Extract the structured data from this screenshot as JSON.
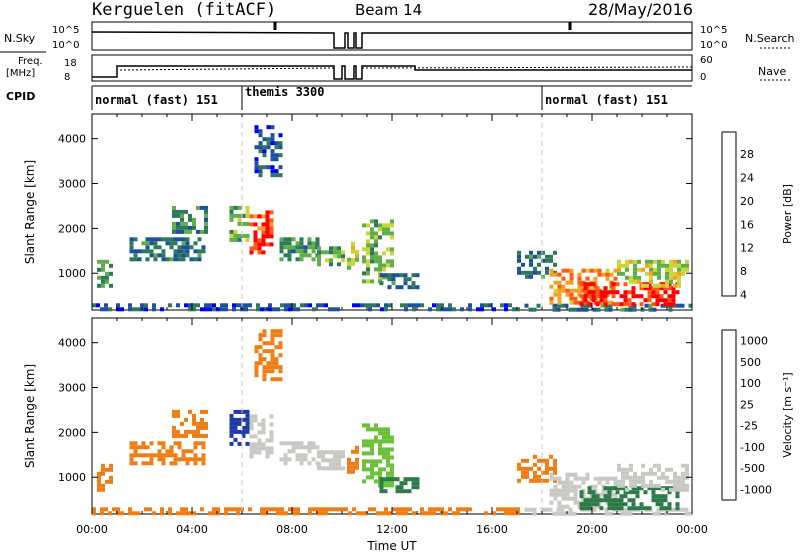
{
  "header": {
    "station": "Kerguelen (fitACF)",
    "beam": "Beam 14",
    "date": "28/May/2016"
  },
  "strips": {
    "nsky_label": "N.Sky",
    "nsearch_label": "N.Search",
    "noise_ticks": [
      "10^5",
      "10^0"
    ],
    "freq_label_1": "Freq.",
    "freq_label_2": "[MHz]",
    "freq_ticks": [
      "18",
      "8"
    ],
    "nave_label": "Nave",
    "nave_ticks": [
      "60",
      "0"
    ],
    "cpid_label": "CPID"
  },
  "cpid": [
    {
      "label": "normal (fast) 151",
      "start_h": 0
    },
    {
      "label": "themis 3300",
      "start_h": 6
    },
    {
      "label": "normal (fast) 151",
      "start_h": 18
    }
  ],
  "chart_data": [
    {
      "type": "heatmap",
      "name": "power",
      "ylabel": "Slant Range [km]",
      "xlabel": "Time UT",
      "ylim": [
        180,
        4550
      ],
      "xlim_hours": [
        0,
        24
      ],
      "x_ticks": [
        "00:00",
        "04:00",
        "08:00",
        "12:00",
        "16:00",
        "20:00",
        "00:00"
      ],
      "y_ticks": [
        1000,
        2000,
        3000,
        4000
      ],
      "colorbar_label": "Power [dB]",
      "colorbar_ticks": [
        "28",
        "24",
        "20",
        "16",
        "12",
        "8",
        "4"
      ],
      "colorbar_range": [
        0,
        30
      ],
      "regions": [
        {
          "t": [
            0.0,
            17.0
          ],
          "r": [
            200,
            330
          ],
          "v": 6
        },
        {
          "t": [
            17.3,
            24.0
          ],
          "r": [
            200,
            320
          ],
          "v": 8
        },
        {
          "t": [
            0.2,
            0.8
          ],
          "r": [
            700,
            1300
          ],
          "v": 12
        },
        {
          "t": [
            1.5,
            4.5
          ],
          "r": [
            1300,
            1800
          ],
          "v": 8
        },
        {
          "t": [
            3.2,
            4.5
          ],
          "r": [
            1900,
            2500
          ],
          "v": 10
        },
        {
          "t": [
            5.5,
            6.2
          ],
          "r": [
            1700,
            2500
          ],
          "v": 14
        },
        {
          "t": [
            6.3,
            7.2
          ],
          "r": [
            1500,
            2400
          ],
          "v": 26
        },
        {
          "t": [
            6.5,
            7.5
          ],
          "r": [
            3200,
            4300
          ],
          "v": 6
        },
        {
          "t": [
            7.5,
            9.0
          ],
          "r": [
            1300,
            1800
          ],
          "v": 10
        },
        {
          "t": [
            9.0,
            10.0
          ],
          "r": [
            1200,
            1600
          ],
          "v": 12
        },
        {
          "t": [
            10.2,
            10.6
          ],
          "r": [
            1100,
            1700
          ],
          "v": 18
        },
        {
          "t": [
            10.8,
            12.0
          ],
          "r": [
            800,
            2200
          ],
          "v": 14
        },
        {
          "t": [
            11.5,
            13.0
          ],
          "r": [
            700,
            1000
          ],
          "v": 8
        },
        {
          "t": [
            17.0,
            18.5
          ],
          "r": [
            900,
            1500
          ],
          "v": 8
        },
        {
          "t": [
            18.3,
            21.0
          ],
          "r": [
            300,
            1100
          ],
          "v": 22
        },
        {
          "t": [
            19.5,
            23.5
          ],
          "r": [
            300,
            800
          ],
          "v": 28
        },
        {
          "t": [
            21.0,
            23.8
          ],
          "r": [
            700,
            1300
          ],
          "v": 16
        }
      ]
    },
    {
      "type": "heatmap",
      "name": "velocity",
      "ylabel": "Slant Range [km]",
      "xlabel": "Time UT",
      "ylim": [
        180,
        4550
      ],
      "xlim_hours": [
        0,
        24
      ],
      "x_ticks": [
        "00:00",
        "04:00",
        "08:00",
        "12:00",
        "16:00",
        "20:00",
        "00:00"
      ],
      "y_ticks": [
        1000,
        2000,
        3000,
        4000
      ],
      "colorbar_label": "Velocity [m s⁻¹]",
      "colorbar_ticks": [
        "1000",
        "500",
        "100",
        "25",
        "-25",
        "-100",
        "-500",
        "-1000"
      ],
      "regions": [
        {
          "t": [
            0.0,
            17.0
          ],
          "r": [
            200,
            330
          ],
          "v": -100
        },
        {
          "t": [
            17.3,
            24.0
          ],
          "r": [
            200,
            320
          ],
          "v": 0
        },
        {
          "t": [
            0.2,
            0.8
          ],
          "r": [
            700,
            1300
          ],
          "v": -100
        },
        {
          "t": [
            1.5,
            4.5
          ],
          "r": [
            1300,
            1800
          ],
          "v": -100
        },
        {
          "t": [
            3.2,
            4.5
          ],
          "r": [
            1900,
            2500
          ],
          "v": -100
        },
        {
          "t": [
            5.5,
            6.2
          ],
          "r": [
            1700,
            2500
          ],
          "v": 500
        },
        {
          "t": [
            6.3,
            7.2
          ],
          "r": [
            1500,
            2400
          ],
          "v": 0
        },
        {
          "t": [
            6.5,
            7.5
          ],
          "r": [
            3200,
            4300
          ],
          "v": -250
        },
        {
          "t": [
            7.5,
            9.0
          ],
          "r": [
            1300,
            1800
          ],
          "v": 0
        },
        {
          "t": [
            9.0,
            10.0
          ],
          "r": [
            1200,
            1600
          ],
          "v": 0
        },
        {
          "t": [
            10.2,
            10.6
          ],
          "r": [
            1100,
            1700
          ],
          "v": -400
        },
        {
          "t": [
            10.8,
            12.0
          ],
          "r": [
            800,
            2200
          ],
          "v": 50
        },
        {
          "t": [
            11.5,
            13.0
          ],
          "r": [
            700,
            1000
          ],
          "v": 100
        },
        {
          "t": [
            17.0,
            18.5
          ],
          "r": [
            900,
            1500
          ],
          "v": -100
        },
        {
          "t": [
            18.3,
            21.0
          ],
          "r": [
            300,
            1100
          ],
          "v": 0
        },
        {
          "t": [
            19.5,
            23.5
          ],
          "r": [
            300,
            800
          ],
          "v": 100
        },
        {
          "t": [
            21.0,
            23.8
          ],
          "r": [
            700,
            1300
          ],
          "v": 0
        }
      ]
    }
  ],
  "colors": {
    "power_scale": [
      "#0000ff",
      "#1e50a0",
      "#2d7a5a",
      "#5fae4a",
      "#c8d63a",
      "#f4a020",
      "#ff5a10",
      "#ff0000"
    ],
    "velocity_scale": [
      "#1f3aa8",
      "#2c7a48",
      "#6cc13a",
      "#c8c8c4",
      "#f6b33a",
      "#f07c14",
      "#ff2810"
    ],
    "ground_scatter": "#b4b4b4",
    "divider": "#c8c8c8"
  }
}
